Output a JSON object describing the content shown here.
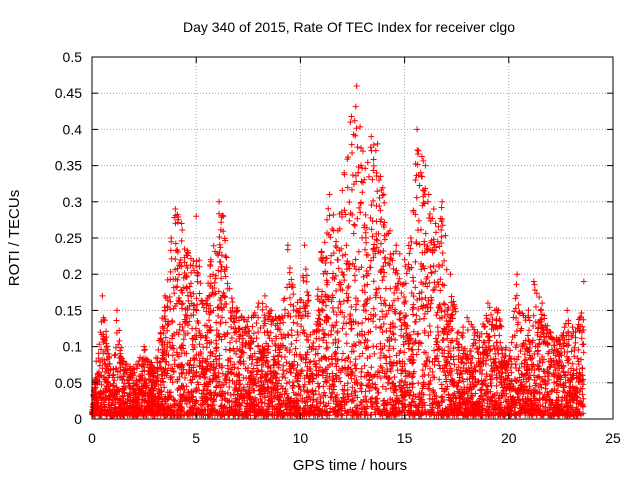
{
  "chart_data": {
    "type": "scatter",
    "title": "Day 340 of 2015, Rate Of TEC Index for receiver clgo",
    "xlabel": "GPS time / hours",
    "ylabel": "ROTI / TECUs",
    "xlim": [
      0,
      25
    ],
    "ylim": [
      0,
      0.5
    ],
    "xticks": [
      "0",
      "5",
      "10",
      "15",
      "20",
      "25"
    ],
    "yticks": [
      "0",
      "0.05",
      "0.1",
      "0.15",
      "0.2",
      "0.25",
      "0.3",
      "0.35",
      "0.4",
      "0.45",
      "0.5"
    ],
    "grid": true,
    "marker": "+",
    "color": "#ff0000",
    "series": [
      {
        "envelope_points": [
          [
            0.0,
            0.01
          ],
          [
            0.2,
            0.08
          ],
          [
            0.4,
            0.12
          ],
          [
            0.5,
            0.17
          ],
          [
            0.8,
            0.09
          ],
          [
            1.0,
            0.06
          ],
          [
            1.2,
            0.15
          ],
          [
            1.5,
            0.08
          ],
          [
            2.0,
            0.07
          ],
          [
            2.5,
            0.1
          ],
          [
            3.0,
            0.07
          ],
          [
            3.5,
            0.17
          ],
          [
            3.8,
            0.25
          ],
          [
            4.0,
            0.29
          ],
          [
            4.3,
            0.27
          ],
          [
            4.6,
            0.23
          ],
          [
            5.0,
            0.28
          ],
          [
            5.3,
            0.16
          ],
          [
            5.7,
            0.22
          ],
          [
            6.1,
            0.3
          ],
          [
            6.3,
            0.28
          ],
          [
            6.6,
            0.18
          ],
          [
            7.0,
            0.15
          ],
          [
            7.5,
            0.14
          ],
          [
            8.0,
            0.16
          ],
          [
            8.3,
            0.17
          ],
          [
            8.6,
            0.15
          ],
          [
            9.0,
            0.14
          ],
          [
            9.4,
            0.24
          ],
          [
            9.8,
            0.15
          ],
          [
            10.2,
            0.24
          ],
          [
            10.6,
            0.12
          ],
          [
            11.0,
            0.23
          ],
          [
            11.4,
            0.31
          ],
          [
            11.8,
            0.26
          ],
          [
            12.1,
            0.34
          ],
          [
            12.4,
            0.41
          ],
          [
            12.7,
            0.46
          ],
          [
            13.0,
            0.37
          ],
          [
            13.4,
            0.39
          ],
          [
            13.7,
            0.38
          ],
          [
            14.0,
            0.31
          ],
          [
            14.3,
            0.26
          ],
          [
            14.6,
            0.24
          ],
          [
            15.0,
            0.22
          ],
          [
            15.3,
            0.25
          ],
          [
            15.6,
            0.4
          ],
          [
            16.0,
            0.35
          ],
          [
            16.4,
            0.29
          ],
          [
            16.8,
            0.3
          ],
          [
            17.2,
            0.2
          ],
          [
            17.6,
            0.12
          ],
          [
            18.0,
            0.14
          ],
          [
            18.5,
            0.12
          ],
          [
            19.0,
            0.16
          ],
          [
            19.5,
            0.15
          ],
          [
            20.0,
            0.08
          ],
          [
            20.4,
            0.2
          ],
          [
            20.8,
            0.14
          ],
          [
            21.2,
            0.19
          ],
          [
            21.6,
            0.16
          ],
          [
            22.0,
            0.12
          ],
          [
            22.4,
            0.11
          ],
          [
            22.8,
            0.15
          ],
          [
            23.2,
            0.12
          ],
          [
            23.6,
            0.19
          ]
        ]
      }
    ]
  }
}
